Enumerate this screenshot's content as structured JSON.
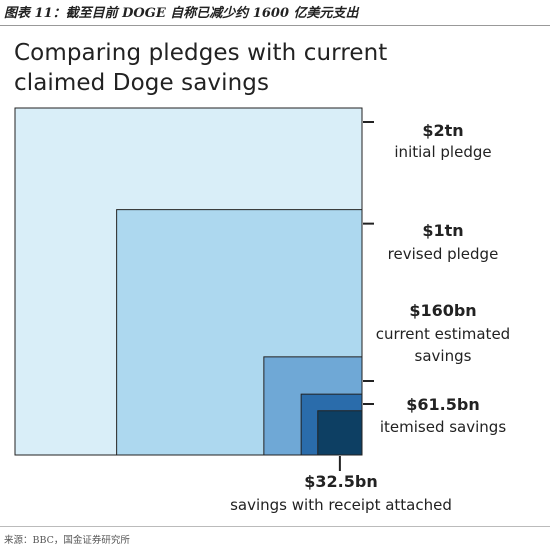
{
  "caption": "图表 11：截至目前 DOGE 自称已减少约 1600 亿美元支出",
  "title_lines": [
    "Comparing pledges with current",
    "claimed Doge savings"
  ],
  "source": "来源：BBC，国金证券研究所",
  "colors": {
    "initial_pledge": "#d9eef8",
    "revised_pledge": "#add8ef",
    "current_estimated_savings": "#6fa8d6",
    "itemised_savings": "#2a6cab",
    "savings_with_receipt": "#0d3f63",
    "outline": "#222222"
  },
  "chart_data": {
    "type": "area",
    "unit": "USD",
    "series": [
      {
        "value_usd_bn": 2000,
        "value_label": "$2tn",
        "description": "initial pledge"
      },
      {
        "value_usd_bn": 1000,
        "value_label": "$1tn",
        "description": "revised pledge"
      },
      {
        "value_usd_bn": 160,
        "value_label": "$160bn",
        "description": "current estimated savings"
      },
      {
        "value_usd_bn": 61.5,
        "value_label": "$61.5bn",
        "description": "itemised savings"
      },
      {
        "value_usd_bn": 32.5,
        "value_label": "$32.5bn",
        "description": "savings with receipt attached"
      }
    ]
  }
}
